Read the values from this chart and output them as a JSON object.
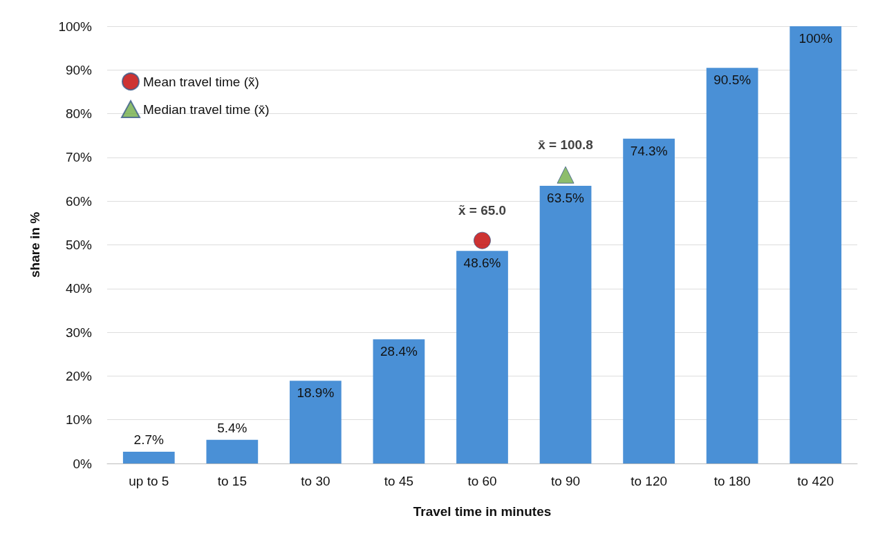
{
  "chart_data": {
    "type": "bar",
    "xlabel": "Travel time in minutes",
    "ylabel": "share in %",
    "categories": [
      "up to 5",
      "to 15",
      "to 30",
      "to 45",
      "to 60",
      "to 90",
      "to 120",
      "to 180",
      "to 420"
    ],
    "series": [
      {
        "color": "#4a90d6",
        "values": [
          2.7,
          5.4,
          18.9,
          28.4,
          48.6,
          63.5,
          74.3,
          90.5,
          100
        ],
        "value_labels": [
          "2.7%",
          "5.4%",
          "18.9%",
          "28.4%",
          "48.6%",
          "63.5%",
          "74.3%",
          "90.5%",
          "100%"
        ]
      },
      {
        "type": "scatter",
        "name": "Mean travel time (x̃)",
        "color": "#c00000",
        "marker": "circle",
        "x": [
          "to 60"
        ],
        "values": [
          51
        ]
      },
      {
        "type": "scatter",
        "name": "Median travel time (x̄)",
        "color": "#70ad47",
        "marker": "triangle",
        "x": [
          "to 90"
        ],
        "values": [
          66
        ]
      }
    ],
    "annotations": [
      {
        "text": "x̃ = 65.0",
        "x": "to 60",
        "y": 51
      },
      {
        "text": "x̄ = 100.8",
        "x": "to 90",
        "y": 66
      }
    ],
    "ylim": [
      0,
      100
    ],
    "yticks": [
      {
        "value": 0,
        "label": "0%"
      },
      {
        "value": 10,
        "label": "10%"
      },
      {
        "value": 20,
        "label": "20%"
      },
      {
        "value": 30,
        "label": "30%"
      },
      {
        "value": 40,
        "label": "40%"
      },
      {
        "value": 50,
        "label": "50%"
      },
      {
        "value": 60,
        "label": "60%"
      },
      {
        "value": 70,
        "label": "70%"
      },
      {
        "value": 80,
        "label": "80%"
      },
      {
        "value": 90,
        "label": "90%"
      },
      {
        "value": 100,
        "label": "100%"
      }
    ],
    "grid": "y",
    "legend": "top left"
  }
}
